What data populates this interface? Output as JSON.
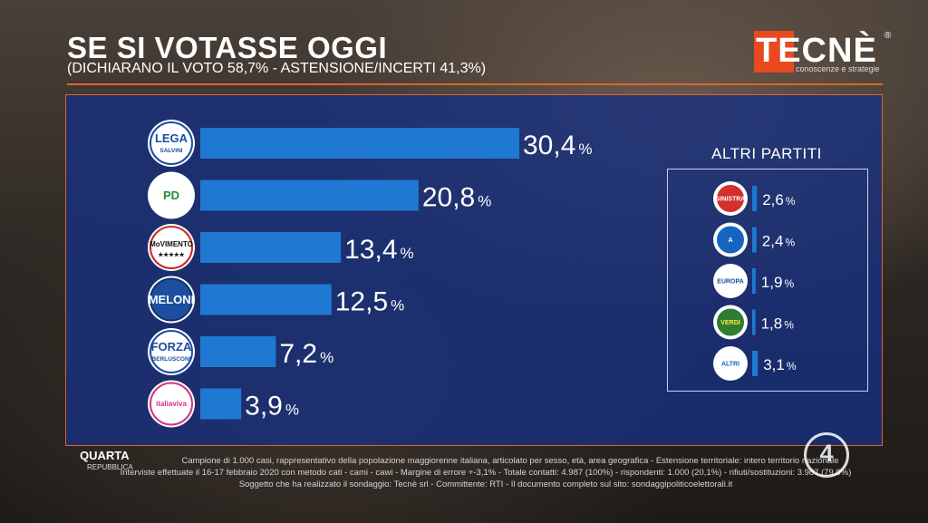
{
  "header": {
    "title": "SE SI VOTASSE OGGI",
    "subtitle": "(DICHIARANO IL VOTO 58,7% - ASTENSIONE/INCERTI 41,3%)"
  },
  "brand": {
    "name": "TECNÈ",
    "registered": "®",
    "tagline": "conoscenze e strategie"
  },
  "broadcaster": {
    "show": "QUARTA",
    "show_sub": "REPUBBLICA",
    "channel": "4"
  },
  "colors": {
    "bar": "#1f78d2",
    "panel": "#16307f",
    "accent": "#e0622c",
    "tecne_red": "#e74a1f"
  },
  "chart_data": [
    {
      "type": "bar",
      "orientation": "horizontal",
      "categories": [
        "LEGA SALVINI PREMIER",
        "PD",
        "MOVIMENTO 5 STELLE",
        "FRATELLI D'ITALIA MELONI",
        "FORZA ITALIA BERLUSCONI",
        "ITALIA VIVA"
      ],
      "values": [
        30.4,
        20.8,
        13.4,
        12.5,
        7.2,
        3.9
      ],
      "value_labels": [
        "30,4",
        "20,8",
        "13,4",
        "12,5",
        "7,2",
        "3,9"
      ],
      "unit": "%",
      "logos": [
        {
          "text": "LEGA",
          "sub": "SALVINI",
          "ring": "#1c4fa0",
          "fill": "#fff",
          "color": "#1c4fa0"
        },
        {
          "text": "PD",
          "sub": "",
          "ring": "#ffffff",
          "fill": "#fff",
          "color": "#2a8a3a"
        },
        {
          "text": "MoVIMENTO",
          "sub": "★★★★★",
          "ring": "#c62828",
          "fill": "#fff",
          "color": "#111"
        },
        {
          "text": "MELONI",
          "sub": "",
          "ring": "#14366e",
          "fill": "#1c4fa0",
          "color": "#fff"
        },
        {
          "text": "FORZA",
          "sub": "BERLUSCONI",
          "ring": "#1c4fa0",
          "fill": "#fff",
          "color": "#1c4fa0"
        },
        {
          "text": "italiaviva",
          "sub": "",
          "ring": "#d1367f",
          "fill": "#fff",
          "color": "#d1367f"
        }
      ],
      "xlim": [
        0,
        33
      ]
    },
    {
      "type": "bar",
      "orientation": "horizontal",
      "title": "ALTRI PARTITI",
      "categories": [
        "SINISTRA",
        "AZIONE",
        "+EUROPA",
        "VERDI",
        "ALTRI"
      ],
      "values": [
        2.6,
        2.4,
        1.9,
        1.8,
        3.1
      ],
      "value_labels": [
        "2,6",
        "2,4",
        "1,9",
        "1,8",
        "3,1"
      ],
      "unit": "%",
      "logos": [
        {
          "text": "SINISTRA",
          "ring": "#ffffff",
          "fill": "#d32f2f",
          "color": "#fff"
        },
        {
          "text": "A",
          "ring": "#ffffff",
          "fill": "#1565c0",
          "color": "#fff"
        },
        {
          "text": "EUROPA",
          "ring": "#ffffff",
          "fill": "#fff",
          "color": "#1c4fa0"
        },
        {
          "text": "VERDI",
          "ring": "#ffffff",
          "fill": "#2e7d32",
          "color": "#ffeb3b"
        },
        {
          "text": "ALTRI",
          "ring": "#ffffff",
          "fill": "#fff",
          "color": "#1565c0"
        }
      ]
    }
  ],
  "footer": {
    "line1": "Campione di 1.000 casi, rappresentativo della popolazione maggiorenne italiana, articolato per sesso, età, area geografica - Estensione territoriale: intero territorio nazionale",
    "line2": "Interviste effettuate il 16-17 febbraio 2020 con metodo cati - cami - cawi - Margine di errore +-3,1% - Totale contatti: 4.987 (100%) - rispondenti: 1.000 (20,1%) - rifiuti/sostituzioni: 3.987 (79,9%)",
    "line3": "Soggetto che ha realizzato il sondaggio: Tecnè srl - Committente: RTI - Il documento completo sul sito: sondaggipoliticoelettorali.it"
  }
}
